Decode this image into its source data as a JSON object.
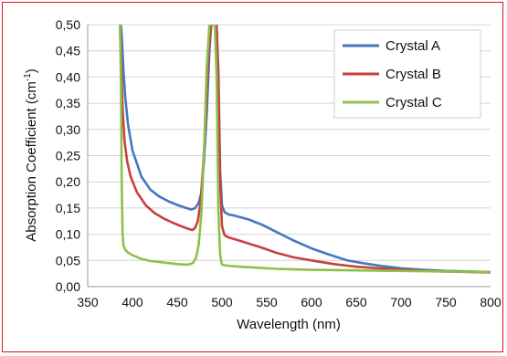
{
  "chart_data": {
    "type": "line",
    "xlabel": "Wavelength (nm)",
    "ylabel_main": "Absorption Coefficient (cm",
    "ylabel_sup": "-1",
    "ylabel_close": ")",
    "xlim": [
      350,
      800
    ],
    "ylim": [
      0,
      0.5
    ],
    "x_ticks": [
      "350",
      "400",
      "450",
      "500",
      "550",
      "600",
      "650",
      "700",
      "750",
      "800"
    ],
    "y_ticks": [
      "0,00",
      "0,05",
      "0,10",
      "0,15",
      "0,20",
      "0,25",
      "0,30",
      "0,35",
      "0,40",
      "0,45",
      "0,50"
    ],
    "grid": "horizontal",
    "legend_position": "top-right",
    "series": [
      {
        "name": "Crystal A",
        "color": "#4677c0",
        "x": [
          387,
          388,
          390,
          392,
          395,
          400,
          410,
          420,
          430,
          440,
          450,
          460,
          466,
          470,
          474,
          477,
          480,
          483,
          486,
          488,
          490,
          492,
          494,
          496,
          498,
          500,
          503,
          507,
          515,
          530,
          545,
          560,
          580,
          600,
          620,
          640,
          660,
          680,
          700,
          725,
          750,
          775,
          800
        ],
        "y": [
          0.5,
          0.48,
          0.41,
          0.36,
          0.31,
          0.26,
          0.21,
          0.185,
          0.172,
          0.163,
          0.156,
          0.15,
          0.147,
          0.15,
          0.16,
          0.18,
          0.24,
          0.33,
          0.45,
          0.5,
          0.5,
          0.5,
          0.5,
          0.41,
          0.22,
          0.155,
          0.142,
          0.138,
          0.135,
          0.128,
          0.118,
          0.105,
          0.088,
          0.073,
          0.061,
          0.05,
          0.044,
          0.039,
          0.035,
          0.032,
          0.03,
          0.029,
          0.028
        ]
      },
      {
        "name": "Crystal B",
        "color": "#c7403d",
        "x": [
          386,
          387,
          389,
          391,
          394,
          398,
          405,
          415,
          425,
          435,
          445,
          455,
          463,
          467,
          470,
          473,
          476,
          479,
          482,
          485,
          488,
          490,
          492,
          494,
          496,
          498,
          500,
          503,
          507,
          515,
          530,
          545,
          560,
          580,
          600,
          625,
          650,
          675,
          700,
          725,
          750,
          775,
          800
        ],
        "y": [
          0.5,
          0.45,
          0.34,
          0.28,
          0.24,
          0.21,
          0.18,
          0.155,
          0.14,
          0.13,
          0.122,
          0.115,
          0.11,
          0.108,
          0.112,
          0.125,
          0.16,
          0.23,
          0.33,
          0.45,
          0.5,
          0.5,
          0.5,
          0.5,
          0.38,
          0.2,
          0.115,
          0.098,
          0.094,
          0.09,
          0.082,
          0.074,
          0.065,
          0.056,
          0.05,
          0.043,
          0.038,
          0.035,
          0.032,
          0.03,
          0.029,
          0.028,
          0.027
        ]
      },
      {
        "name": "Crystal C",
        "color": "#8fc04a",
        "x": [
          386,
          387,
          388,
          389,
          390,
          392,
          395,
          400,
          410,
          420,
          430,
          440,
          450,
          460,
          465,
          468,
          471,
          474,
          477,
          480,
          483,
          486,
          488,
          490,
          492,
          494,
          496,
          498,
          500,
          505,
          520,
          540,
          560,
          580,
          600,
          650,
          700,
          750,
          800
        ],
        "y": [
          0.5,
          0.4,
          0.2,
          0.1,
          0.078,
          0.07,
          0.065,
          0.06,
          0.053,
          0.049,
          0.047,
          0.045,
          0.043,
          0.042,
          0.043,
          0.046,
          0.055,
          0.08,
          0.14,
          0.26,
          0.42,
          0.5,
          0.5,
          0.5,
          0.5,
          0.4,
          0.14,
          0.06,
          0.042,
          0.04,
          0.038,
          0.036,
          0.034,
          0.033,
          0.032,
          0.031,
          0.03,
          0.029,
          0.028
        ]
      }
    ]
  }
}
